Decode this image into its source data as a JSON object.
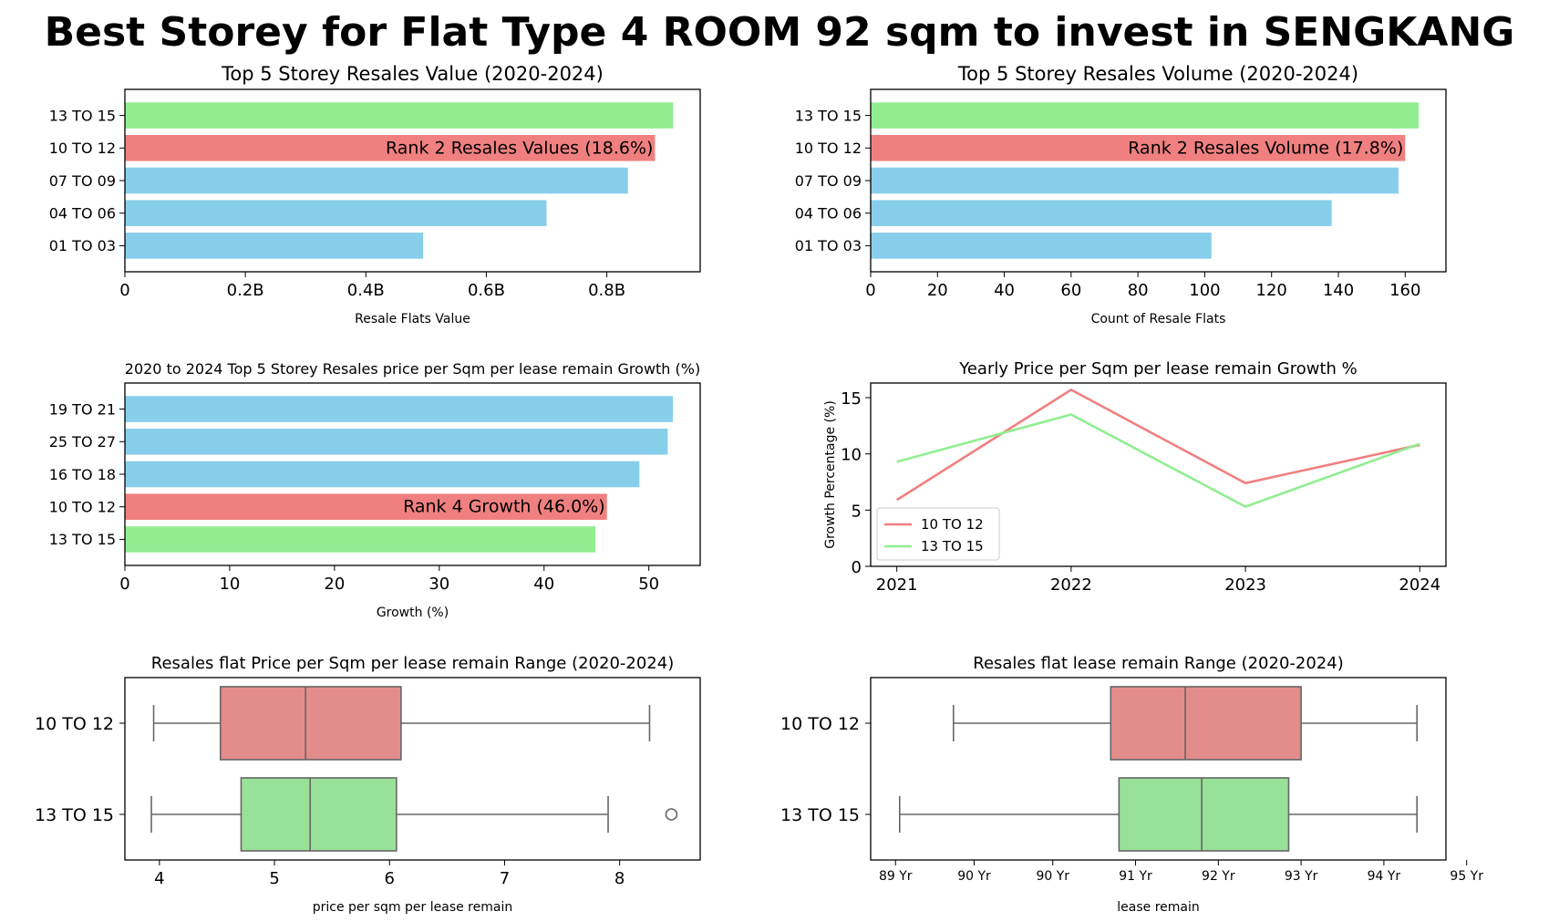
{
  "figure": {
    "title": "Best Storey for Flat Type 4 ROOM 92 sqm to invest in SENGKANG"
  },
  "colors": {
    "highlight_top": "#90ee90",
    "highlight_target": "#f08080",
    "other_bar": "#87ceeb",
    "box_target": "#e38c8c",
    "box_top": "#98e198",
    "line_target": "#f08080",
    "line_top": "#90ee90",
    "box_line": "#666666"
  },
  "chart_data": [
    {
      "type": "bar",
      "orientation": "horizontal",
      "title": "Top 5 Storey Resales Value (2020-2024)",
      "xlabel": "Resale Flats Value",
      "ylabel": "",
      "categories": [
        "13 TO 15",
        "10 TO 12",
        "07 TO 09",
        "04 TO 06",
        "01 TO 03"
      ],
      "values": [
        0.91,
        0.88,
        0.835,
        0.7,
        0.495
      ],
      "bar_colors": [
        "highlight_top",
        "highlight_target",
        "other_bar",
        "other_bar",
        "other_bar"
      ],
      "xlim": [
        0,
        0.955
      ],
      "xticks": [
        0,
        0.2,
        0.4,
        0.6,
        0.8
      ],
      "xtick_labels": [
        "0",
        "0.2B",
        "0.4B",
        "0.6B",
        "0.8B"
      ],
      "annotation": {
        "category": "10 TO 12",
        "text": "Rank 2 Resales Values (18.6%)"
      }
    },
    {
      "type": "bar",
      "orientation": "horizontal",
      "title": "Top 5 Storey Resales Volume (2020-2024)",
      "xlabel": "Count of Resale Flats",
      "ylabel": "",
      "categories": [
        "13 TO 15",
        "10 TO 12",
        "07 TO 09",
        "04 TO 06",
        "01 TO 03"
      ],
      "values": [
        164,
        160,
        158,
        138,
        102
      ],
      "bar_colors": [
        "highlight_top",
        "highlight_target",
        "other_bar",
        "other_bar",
        "other_bar"
      ],
      "xlim": [
        0,
        172.2
      ],
      "xticks": [
        0,
        20,
        40,
        60,
        80,
        100,
        120,
        140,
        160
      ],
      "xtick_labels": [
        "0",
        "20",
        "40",
        "60",
        "80",
        "100",
        "120",
        "140",
        "160"
      ],
      "annotation": {
        "category": "10 TO 12",
        "text": "Rank 2 Resales Volume (17.8%)"
      }
    },
    {
      "type": "bar",
      "orientation": "horizontal",
      "title": "2020 to 2024 Top 5 Storey Resales price per Sqm per lease remain Growth (%)",
      "xlabel": "Growth (%)",
      "ylabel": "",
      "categories": [
        "19 TO 21",
        "25 TO 27",
        "16 TO 18",
        "10 TO 12",
        "13 TO 15"
      ],
      "values": [
        52.3,
        51.8,
        49.1,
        46.0,
        44.9
      ],
      "bar_colors": [
        "other_bar",
        "other_bar",
        "other_bar",
        "highlight_target",
        "highlight_top"
      ],
      "xlim": [
        0,
        54.9
      ],
      "xticks": [
        0,
        10,
        20,
        30,
        40,
        50
      ],
      "xtick_labels": [
        "0",
        "10",
        "20",
        "30",
        "40",
        "50"
      ],
      "annotation": {
        "category": "10 TO 12",
        "text": "Rank 4 Growth (46.0%)"
      }
    },
    {
      "type": "line",
      "title": "Yearly Price per Sqm per lease remain Growth %",
      "xlabel": "",
      "ylabel": "Growth Percentage (%)",
      "x": [
        "2021",
        "2022",
        "2023",
        "2024"
      ],
      "xlim": [
        -0.15,
        3.15
      ],
      "ylim": [
        0,
        16.3
      ],
      "yticks": [
        0,
        5,
        10,
        15
      ],
      "ytick_labels": [
        "0",
        "5",
        "10",
        "15"
      ],
      "grid": false,
      "legend_position": "lower-left",
      "series": [
        {
          "name": "10 TO 12",
          "color": "line_target",
          "values": [
            5.9,
            15.7,
            7.4,
            10.8
          ]
        },
        {
          "name": "13 TO 15",
          "color": "line_top",
          "values": [
            9.3,
            13.5,
            5.3,
            10.9
          ]
        }
      ]
    },
    {
      "type": "box",
      "orientation": "horizontal",
      "title": "Resales flat Price per Sqm per lease remain Range (2020-2024)",
      "xlabel": "price per sqm per lease remain",
      "ylabel": "",
      "xlim": [
        3.7,
        8.7
      ],
      "xticks": [
        4,
        5,
        6,
        7,
        8
      ],
      "xtick_labels": [
        "4",
        "5",
        "6",
        "7",
        "8"
      ],
      "categories": [
        "10 TO 12",
        "13 TO 15"
      ],
      "boxes": [
        {
          "name": "10 TO 12",
          "color": "box_target",
          "whisker_low": 3.95,
          "q1": 4.53,
          "median": 5.27,
          "q3": 6.1,
          "whisker_high": 8.26,
          "outliers": []
        },
        {
          "name": "13 TO 15",
          "color": "box_top",
          "whisker_low": 3.93,
          "q1": 4.71,
          "median": 5.31,
          "q3": 6.06,
          "whisker_high": 7.9,
          "outliers": [
            8.45
          ]
        }
      ]
    },
    {
      "type": "box",
      "orientation": "horizontal",
      "title": "Resales flat lease remain Range (2020-2024)",
      "xlabel": "lease remain",
      "ylabel": "",
      "xlim": [
        88.3,
        95.25
      ],
      "xticks": [
        89,
        90,
        91,
        92,
        93,
        94,
        95
      ],
      "xtick_labels": [
        "89 Yr",
        "90 Yr",
        "90 Yr",
        "91 Yr",
        "92 Yr",
        "93 Yr",
        "94 Yr",
        "95 Yr"
      ],
      "xtick_positions": [
        88.6,
        89.55,
        90.5,
        91.5,
        92.5,
        93.5,
        94.5,
        95.5
      ],
      "categories": [
        "10 TO 12",
        "13 TO 15"
      ],
      "boxes": [
        {
          "name": "10 TO 12",
          "color": "box_target",
          "whisker_low": 89.3,
          "q1": 91.2,
          "median": 92.1,
          "q3": 93.5,
          "whisker_high": 94.9,
          "outliers": []
        },
        {
          "name": "13 TO 15",
          "color": "box_top",
          "whisker_low": 88.65,
          "q1": 91.3,
          "median": 92.3,
          "q3": 93.35,
          "whisker_high": 94.9,
          "outliers": []
        }
      ]
    }
  ]
}
